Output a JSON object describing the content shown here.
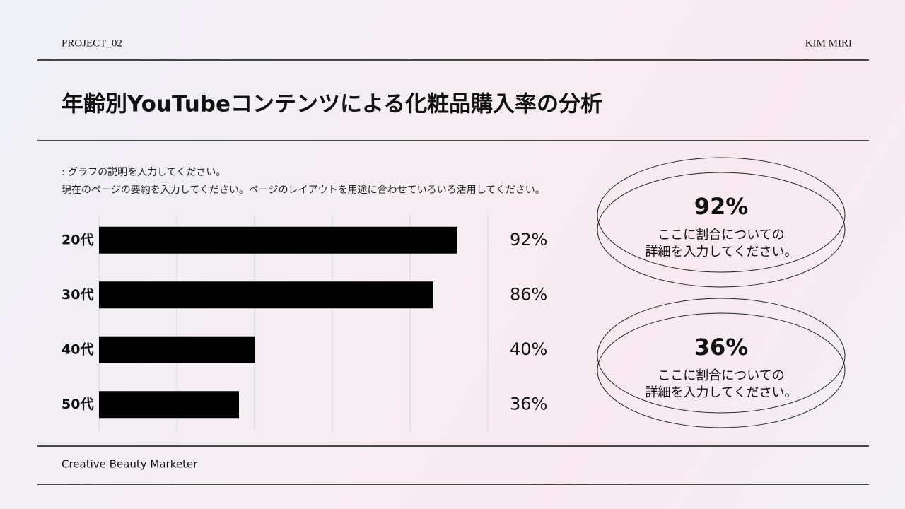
{
  "header": {
    "left": "PROJECT_02",
    "right": "KIM MIRI"
  },
  "title": "年齢別YouTubeコンテンツによる化粧品購入率の分析",
  "description": [
    ": グラフの説明を入力してください。",
    "現在のページの要約を入力してください。ページのレイアウトを用途に合わせていろいろ活用してください。"
  ],
  "chart_data": {
    "type": "bar",
    "orientation": "horizontal",
    "categories": [
      "20代",
      "30代",
      "40代",
      "50代"
    ],
    "values": [
      92,
      86,
      40,
      36
    ],
    "value_labels": [
      "92%",
      "86%",
      "40%",
      "36%"
    ],
    "color": "#000000",
    "xlim": [
      0,
      100
    ],
    "xticks": [
      0,
      20,
      40,
      60,
      80,
      100
    ],
    "grid": true
  },
  "callouts": [
    {
      "value": "92%",
      "lines": [
        "ここに割合についての",
        "詳細を入力してください。"
      ]
    },
    {
      "value": "36%",
      "lines": [
        "ここに割合についての",
        "詳細を入力してください。"
      ]
    }
  ],
  "footer": "Creative Beauty Marketer"
}
